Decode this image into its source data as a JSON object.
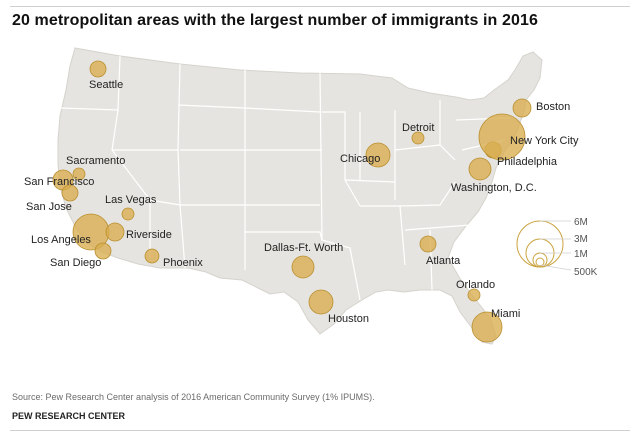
{
  "title": "20 metropolitan areas with the largest number of immigrants in 2016",
  "source": "Source: Pew Research Center analysis of 2016 American Community Survey (1% IPUMS).",
  "organization": "PEW RESEARCH CENTER",
  "colors": {
    "bubble_fill": "#d8ad4e",
    "bubble_stroke": "#b98f2f",
    "land": "#e6e4e0",
    "border": "#ffffff",
    "legend_stroke": "#caa440"
  },
  "cities": [
    {
      "name": "Seattle"
    },
    {
      "name": "Sacramento"
    },
    {
      "name": "San Francisco"
    },
    {
      "name": "San Jose"
    },
    {
      "name": "Las Vegas"
    },
    {
      "name": "Los Angeles"
    },
    {
      "name": "Riverside"
    },
    {
      "name": "San Diego"
    },
    {
      "name": "Phoenix"
    },
    {
      "name": "Dallas-Ft. Worth"
    },
    {
      "name": "Houston"
    },
    {
      "name": "Chicago"
    },
    {
      "name": "Detroit"
    },
    {
      "name": "Atlanta"
    },
    {
      "name": "Orlando"
    },
    {
      "name": "Miami"
    },
    {
      "name": "Washington, D.C."
    },
    {
      "name": "Philadelphia"
    },
    {
      "name": "New York City"
    },
    {
      "name": "Boston"
    }
  ],
  "legend": {
    "labels": [
      "6M",
      "3M",
      "1M",
      "500K"
    ]
  }
}
